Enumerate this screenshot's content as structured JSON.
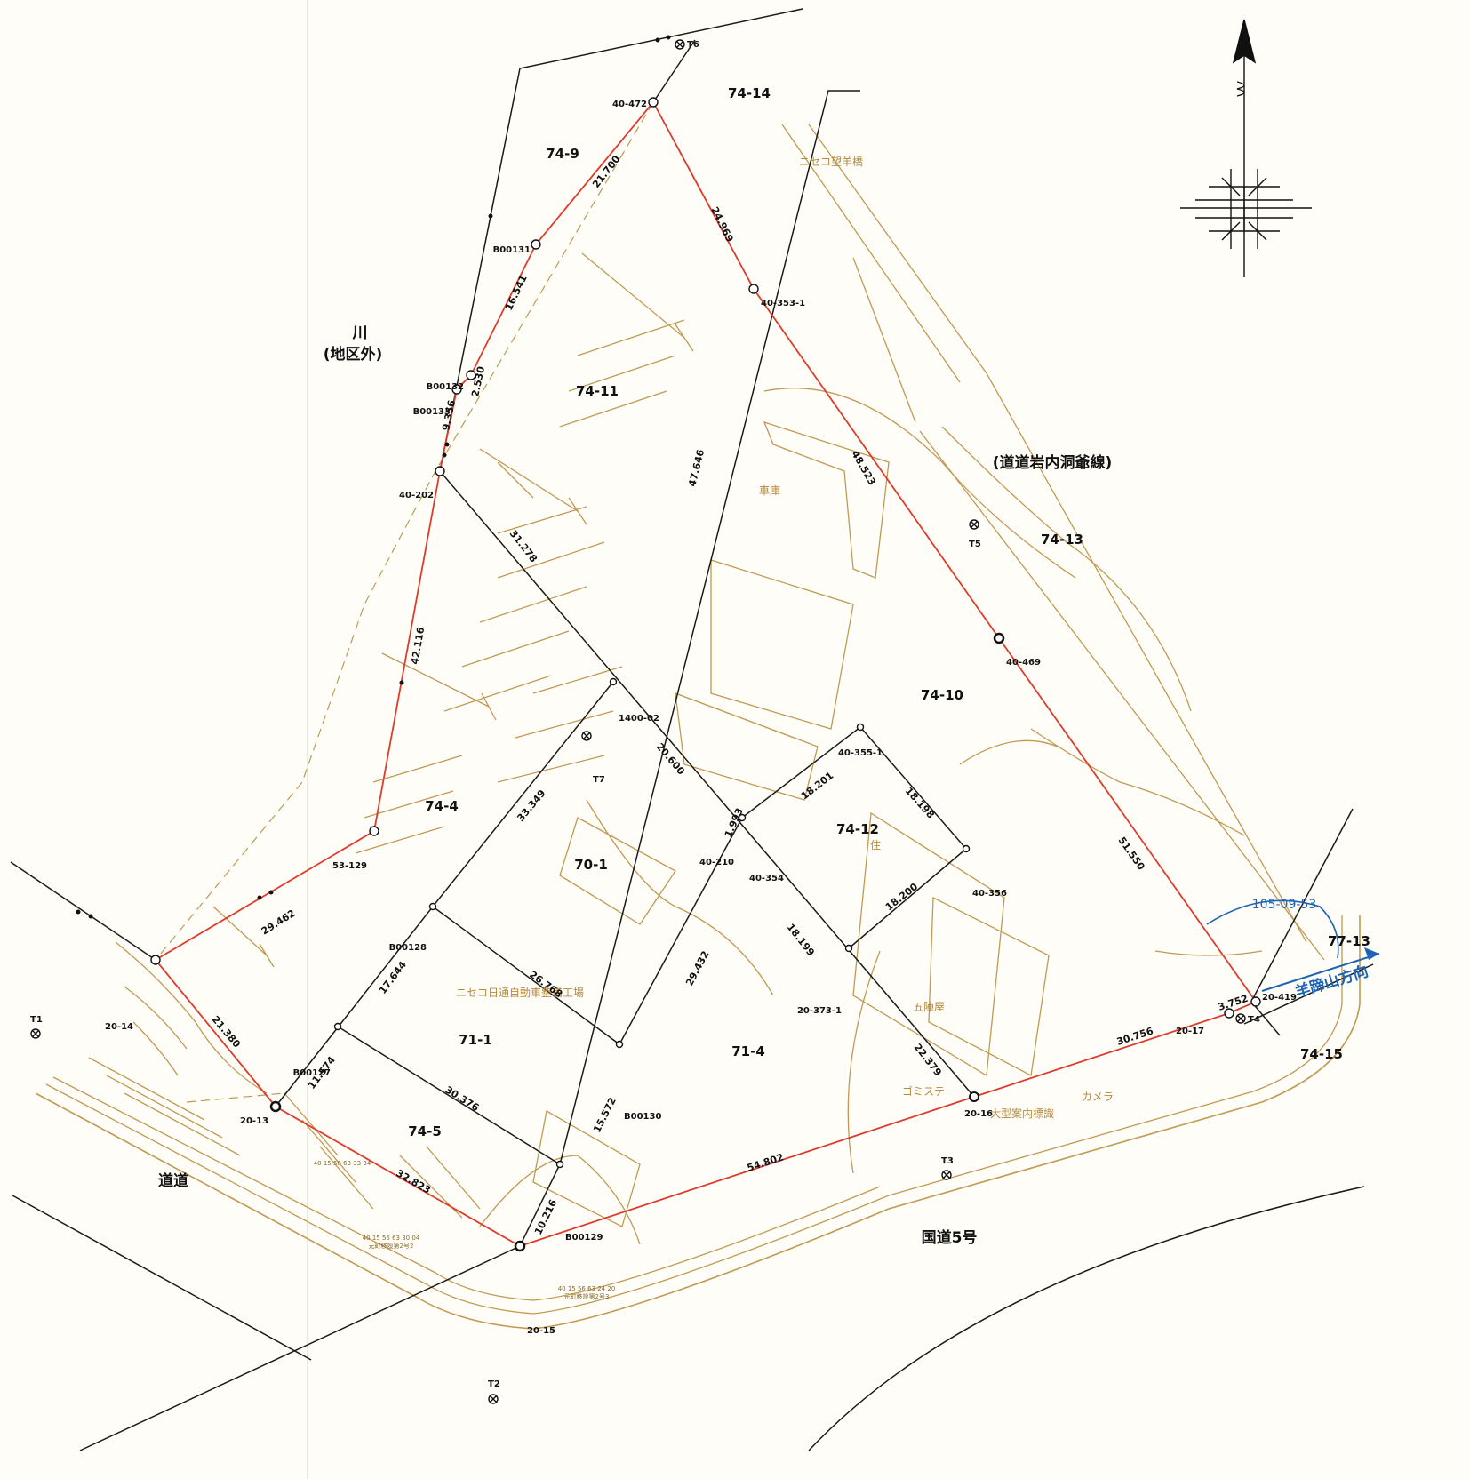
{
  "colors": {
    "paper": "#fefdf8",
    "boundary_red": "#e03b2a",
    "survey_black": "#1a1a1a",
    "topo_brown": "#c19a52",
    "direction_blue": "#1e64b4"
  },
  "areas": {
    "river": "川",
    "river_note": "(地区外)",
    "prefectural_road": "(道道岩内洞爺線)",
    "left_road": "道道",
    "national_road": "国道5号",
    "direction_label": "羊蹄山方向",
    "direction_angle": "105-09-53"
  },
  "parcels": [
    "74-14",
    "74-9",
    "74-11",
    "74-13",
    "74-10",
    "74-12",
    "74-4",
    "70-1",
    "71-1",
    "71-4",
    "74-5",
    "77-13",
    "74-15"
  ],
  "buildings": {
    "bridge": "ニセコ望羊橋",
    "garage": "車庫",
    "residence": "住",
    "goryo": "五陣屋",
    "factory": "ニセコ日通自動車整備工場",
    "garbage": "ゴミステー",
    "camera": "カメラ",
    "signboard": "大型案内標識",
    "registry1_line1": "40 15 56 63 24 20",
    "registry1_line2": "元町移設第2号3",
    "registry2_line1": "40 15 56 63 30 04",
    "registry2_line2": "元町移設第2号2",
    "registry3": "40 15 56 63 33 34"
  },
  "points": {
    "p40_472": "40-472",
    "t6": "T6",
    "b00131": "B00131",
    "b00132": "B00132",
    "b00133": "B00133",
    "p40_202": "40-202",
    "p40_353_1": "40-353-1",
    "t5": "T5",
    "p40_469": "40-469",
    "p1400_02": "1400-02",
    "t7": "T7",
    "p40_355_1": "40-355-1",
    "p40_356": "40-356",
    "p40_210": "40-210",
    "p40_354": "40-354",
    "p53_129": "53-129",
    "b00128": "B00128",
    "p20_373_1": "20-373-1",
    "p20_14": "20-14",
    "b00127": "B00127",
    "t1": "T1",
    "p20_13": "20-13",
    "b00130": "B00130",
    "b00129": "B00129",
    "p20_15": "20-15",
    "t2": "T2",
    "t3": "T3",
    "p20_16": "20-16",
    "p20_419": "20-419",
    "p20_17": "20-17",
    "t4": "T4"
  },
  "distances": {
    "d21_700": "21.700",
    "d24_969": "24.969",
    "d16_541": "16.541",
    "d2_530": "2.530",
    "d9_356": "9.356",
    "d47_646": "47.646",
    "d48_523": "48.523",
    "d31_278": "31.278",
    "d42_116": "42.116",
    "d20_600": "20.600",
    "d33_349": "33.349",
    "d1_993": "1.993",
    "d18_201": "18.201",
    "d18_198": "18.198",
    "d18_200": "18.200",
    "d18_199": "18.199",
    "d51_550": "51.550",
    "d29_462": "29.462",
    "d26_768": "26.768",
    "d29_432": "29.432",
    "d17_644": "17.644",
    "d21_380": "21.380",
    "d11_574": "11.574",
    "d30_376": "30.376",
    "d15_572": "15.572",
    "d32_823": "32.823",
    "d10_216": "10.216",
    "d54_802": "54.802",
    "d30_756": "30.756",
    "d22_379": "22.379",
    "d3_752": "3.752"
  }
}
